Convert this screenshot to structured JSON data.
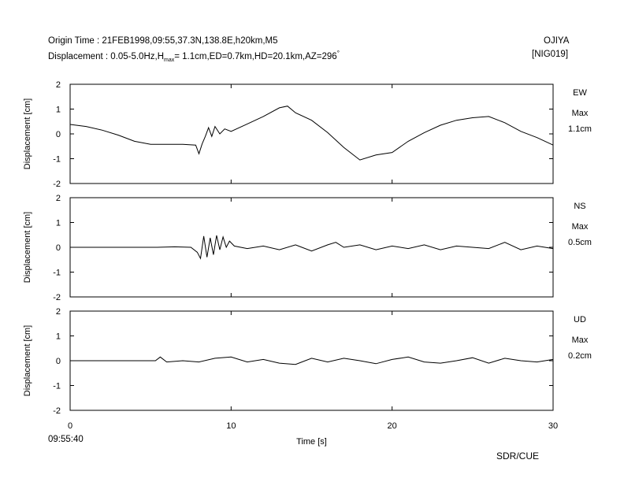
{
  "header": {
    "origin_time": "Origin Time : 21FEB1998,09:55,37.3N,138.8E,h20km,M5",
    "disp_prefix": "Displacement : 0.05-5.0Hz,H",
    "disp_sub": "max",
    "disp_suffix": "= 1.1cm,ED=0.7km,HD=20.1km,AZ=296",
    "disp_deg": "°",
    "station_name": "OJIYA",
    "station_code": "[NIG019]"
  },
  "footer": {
    "start_time": "09:55:40",
    "credit": "SDR/CUE"
  },
  "chart_data": [
    {
      "type": "line",
      "component": "EW",
      "max_label": "Max",
      "max_value": "1.1cm",
      "ylabel": "Displacement [cm]",
      "xlabel": "Time [s]",
      "xlim": [
        0,
        30
      ],
      "ylim": [
        -2,
        2
      ],
      "yticks": [
        "2",
        "1",
        "0",
        "-1",
        "-2"
      ],
      "xticks": [
        "0",
        "10",
        "20",
        "30"
      ],
      "color": "#000000",
      "x": [
        0,
        1,
        2,
        3,
        4,
        5,
        6,
        7,
        7.8,
        8.0,
        8.2,
        8.4,
        8.6,
        8.8,
        9.0,
        9.3,
        9.6,
        10,
        11,
        12,
        13,
        13.5,
        14,
        15,
        16,
        17,
        18,
        19,
        20,
        21,
        22,
        23,
        24,
        25,
        26,
        27,
        28,
        29,
        30
      ],
      "y": [
        0.38,
        0.3,
        0.15,
        -0.05,
        -0.3,
        -0.42,
        -0.42,
        -0.42,
        -0.45,
        -0.8,
        -0.4,
        -0.1,
        0.25,
        -0.1,
        0.3,
        0.0,
        0.2,
        0.1,
        0.4,
        0.7,
        1.05,
        1.12,
        0.85,
        0.55,
        0.05,
        -0.55,
        -1.05,
        -0.85,
        -0.75,
        -0.3,
        0.05,
        0.35,
        0.55,
        0.65,
        0.7,
        0.45,
        0.1,
        -0.15,
        -0.45
      ]
    },
    {
      "type": "line",
      "component": "NS",
      "max_label": "Max",
      "max_value": "0.5cm",
      "ylabel": "Displacement [cm]",
      "xlabel": "Time [s]",
      "xlim": [
        0,
        30
      ],
      "ylim": [
        -2,
        2
      ],
      "yticks": [
        "2",
        "1",
        "0",
        "-1",
        "-2"
      ],
      "xticks": [
        "0",
        "10",
        "20",
        "30"
      ],
      "color": "#000000",
      "x": [
        0,
        5.4,
        6.5,
        7.5,
        7.9,
        8.1,
        8.3,
        8.5,
        8.7,
        8.9,
        9.1,
        9.3,
        9.5,
        9.7,
        9.9,
        10.2,
        11,
        12,
        13,
        14,
        15,
        16,
        16.5,
        17,
        18,
        19,
        20,
        21,
        22,
        23,
        24,
        25,
        26,
        27,
        28,
        29,
        30
      ],
      "y": [
        0.0,
        0.0,
        0.02,
        0.0,
        -0.2,
        -0.45,
        0.45,
        -0.4,
        0.38,
        -0.3,
        0.48,
        -0.1,
        0.42,
        0.0,
        0.25,
        0.05,
        -0.05,
        0.05,
        -0.1,
        0.1,
        -0.15,
        0.1,
        0.2,
        0.0,
        0.1,
        -0.1,
        0.05,
        -0.05,
        0.1,
        -0.1,
        0.05,
        0.0,
        -0.05,
        0.2,
        -0.1,
        0.05,
        -0.05
      ]
    },
    {
      "type": "line",
      "component": "UD",
      "max_label": "Max",
      "max_value": "0.2cm",
      "ylabel": "Displacement [cm]",
      "xlabel": "Time [s]",
      "xlim": [
        0,
        30
      ],
      "ylim": [
        -2,
        2
      ],
      "yticks": [
        "2",
        "1",
        "0",
        "-1",
        "-2"
      ],
      "xticks": [
        "0",
        "10",
        "20",
        "30"
      ],
      "color": "#000000",
      "x": [
        0,
        5.3,
        5.6,
        6.0,
        7,
        8,
        9,
        10,
        11,
        12,
        13,
        14,
        15,
        16,
        17,
        18,
        19,
        20,
        21,
        22,
        23,
        24,
        25,
        26,
        27,
        28,
        29,
        30
      ],
      "y": [
        0.0,
        0.0,
        0.15,
        -0.05,
        0.0,
        -0.05,
        0.1,
        0.15,
        -0.05,
        0.05,
        -0.1,
        -0.15,
        0.1,
        -0.05,
        0.1,
        0.0,
        -0.12,
        0.05,
        0.15,
        -0.05,
        -0.1,
        0.0,
        0.12,
        -0.1,
        0.1,
        0.0,
        -0.05,
        0.05
      ]
    }
  ]
}
